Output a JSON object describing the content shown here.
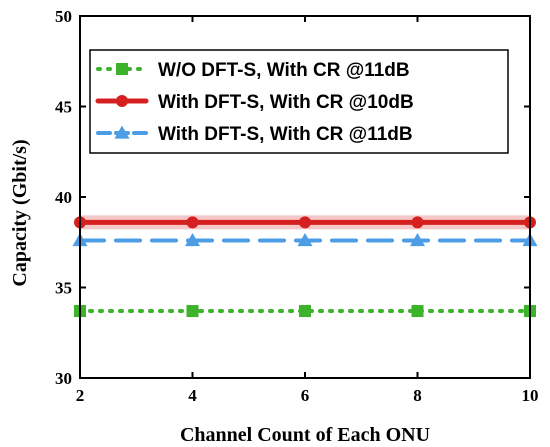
{
  "chart_data": {
    "type": "line",
    "xlabel": "Channel Count of Each ONU",
    "ylabel": "Capacity (Gbit/s)",
    "xlim": [
      2,
      10
    ],
    "ylim": [
      30,
      50
    ],
    "xticks": [
      2,
      4,
      6,
      8,
      10
    ],
    "yticks": [
      30,
      35,
      40,
      45,
      50
    ],
    "x": [
      2,
      4,
      6,
      8,
      10
    ],
    "grid": false,
    "legend_position": "top",
    "series": [
      {
        "name": "W/O DFT-S, With CR @11dB",
        "values": [
          33.7,
          33.7,
          33.7,
          33.7,
          33.7
        ],
        "color": "#3cb32a",
        "line_style": "dotted",
        "marker": "square"
      },
      {
        "name": "With DFT-S, With CR @10dB",
        "values": [
          38.6,
          38.6,
          38.6,
          38.6,
          38.6
        ],
        "color": "#d62020",
        "line_style": "solid",
        "marker": "circle"
      },
      {
        "name": "With DFT-S, With CR @11dB",
        "values": [
          37.6,
          37.6,
          37.6,
          37.6,
          37.6
        ],
        "color": "#4c9ce6",
        "line_style": "dashed",
        "marker": "triangle"
      }
    ]
  }
}
